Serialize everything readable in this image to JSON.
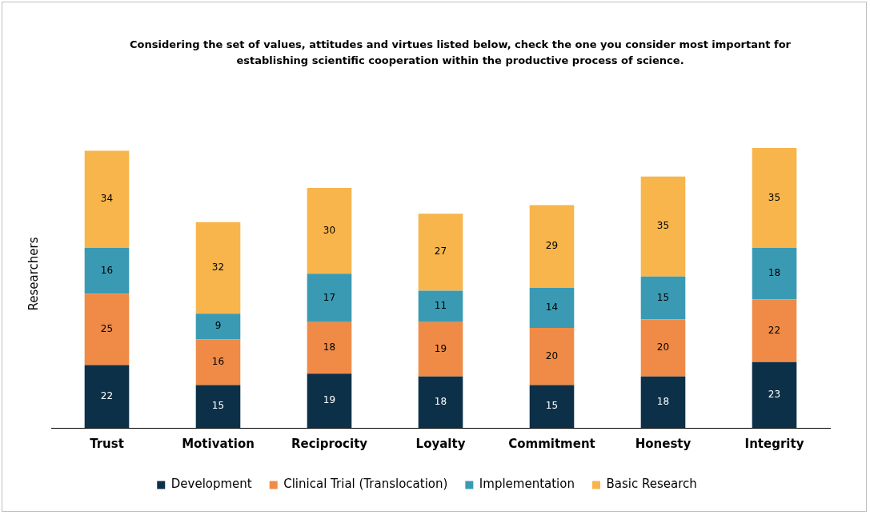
{
  "chart_data": {
    "type": "bar",
    "stacked": true,
    "data_labels": true,
    "grid": false,
    "legend": "bottom",
    "title": "Considering the set of values, attitudes and virtues listed below, check the one you consider most important for establishing scientific cooperation within the productive process of science.",
    "ylabel": "Researchers",
    "categories": [
      "Trust",
      "Motivation",
      "Reciprocity",
      "Loyalty",
      "Commitment",
      "Honesty",
      "Integrity"
    ],
    "series": [
      {
        "name": "Development",
        "color": "#0d3049",
        "values": [
          22,
          15,
          19,
          18,
          15,
          18,
          23
        ]
      },
      {
        "name": "Clinical Trial (Translocation)",
        "color": "#ef8b47",
        "values": [
          25,
          16,
          18,
          19,
          20,
          20,
          22
        ]
      },
      {
        "name": "Implementation",
        "color": "#3a9ab3",
        "values": [
          16,
          9,
          17,
          11,
          14,
          15,
          18
        ]
      },
      {
        "name": "Basic Research",
        "color": "#f7b54c",
        "values": [
          34,
          32,
          30,
          27,
          29,
          35,
          35
        ]
      }
    ]
  }
}
